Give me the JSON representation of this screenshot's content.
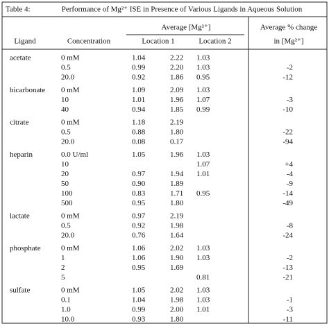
{
  "table": {
    "label": "Table 4:",
    "title": "Performance of Mg²⁺ ISE in Presence of Various Ligands in Aqueous Solution",
    "header": {
      "average": "Average [Mg²⁺]",
      "change_1": "Average % change",
      "change_2": "in [Mg²⁺]",
      "ligand": "Ligand",
      "concentration": "Concentration",
      "location_1": "Location 1",
      "location_2": "Location 2"
    },
    "groups": [
      {
        "ligand": "acetate",
        "rows": [
          [
            "0 mM",
            "1.04",
            "2.22",
            "1.03",
            null
          ],
          [
            "0.5",
            "0.99",
            "2.20",
            "1.03",
            "-2"
          ],
          [
            "20.0",
            "0.92",
            "1.86",
            "0.95",
            "-12"
          ]
        ]
      },
      {
        "ligand": "bicarbonate",
        "rows": [
          [
            "0 mM",
            "1.09",
            "2.09",
            "1.03",
            null
          ],
          [
            "10",
            "1.01",
            "1.96",
            "1.07",
            "-3"
          ],
          [
            "40",
            "0.94",
            "1.85",
            "0.99",
            "-10"
          ]
        ]
      },
      {
        "ligand": "citrate",
        "rows": [
          [
            "0 mM",
            "1.18",
            "2.19",
            null,
            null
          ],
          [
            "0.5",
            "0.88",
            "1.80",
            null,
            "-22"
          ],
          [
            "20.0",
            "0.08",
            "0.17",
            null,
            "-94"
          ]
        ]
      },
      {
        "ligand": "heparin",
        "rows": [
          [
            "0.0 U/ml",
            "1.05",
            "1.96",
            "1.03",
            null
          ],
          [
            "10",
            null,
            null,
            "1.07",
            "+4"
          ],
          [
            "20",
            "0.97",
            "1.94",
            "1.01",
            "-4"
          ],
          [
            "50",
            "0.90",
            "1.89",
            null,
            "-9"
          ],
          [
            "100",
            "0.83",
            "1.71",
            "0.95",
            "-14"
          ],
          [
            "500",
            "0.95",
            "1.80",
            null,
            "-49"
          ]
        ]
      },
      {
        "ligand": "lactate",
        "rows": [
          [
            "0 mM",
            "0.97",
            "2.19",
            null,
            null
          ],
          [
            "0.5",
            "0.92",
            "1.98",
            null,
            "-8"
          ],
          [
            "20.0",
            "0.76",
            "1.64",
            null,
            "-24"
          ]
        ]
      },
      {
        "ligand": "phosphate",
        "rows": [
          [
            "0 mM",
            "1.06",
            "2.02",
            "1.03",
            null
          ],
          [
            "1",
            "1.06",
            "1.90",
            "1.03",
            "-2"
          ],
          [
            "2",
            "0.95",
            "1.69",
            null,
            "-13"
          ],
          [
            "5",
            null,
            null,
            "0.81",
            "-21"
          ]
        ]
      },
      {
        "ligand": "sulfate",
        "rows": [
          [
            "0 mM",
            "1.05",
            "2.02",
            "1.03",
            null
          ],
          [
            "0.1",
            "1.04",
            "1.98",
            "1.03",
            "-1"
          ],
          [
            "1.0",
            "0.99",
            "2.00",
            "1.01",
            "-3"
          ],
          [
            "10.0",
            "0.93",
            "1.80",
            null,
            "-11"
          ]
        ]
      }
    ]
  }
}
